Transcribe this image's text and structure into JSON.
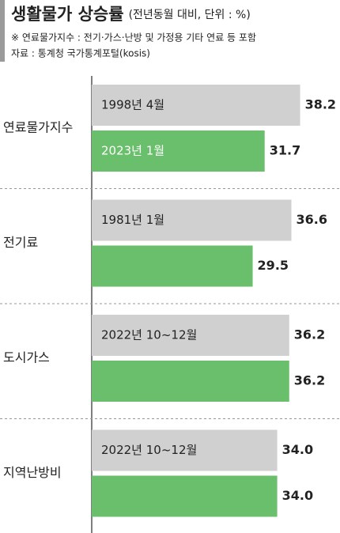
{
  "chart_data": {
    "type": "bar",
    "orientation": "horizontal",
    "title": "생활물가 상승률",
    "subtitle": "(전년동월 대비, 단위 : %)",
    "notes": [
      "※ 연료물가지수 : 전기·가스·난방 및 가정용 기타 연료 등 포함",
      "자료 : 통계청 국가통계포털(kosis)"
    ],
    "categories": [
      "연료물가지수",
      "전기료",
      "도시가스",
      "지역난방비"
    ],
    "series": [
      {
        "color": "#d0d0d0",
        "values": [
          38.2,
          36.6,
          36.2,
          34.0
        ],
        "value_labels": [
          "38.2",
          "36.6",
          "36.2",
          "34.0"
        ],
        "labels": [
          "1998년 4월",
          "1981년 1월",
          "2022년 10~12월",
          "2022년 10~12월"
        ]
      },
      {
        "color": "#6abf6c",
        "values": [
          31.7,
          29.5,
          36.2,
          34.0
        ],
        "value_labels": [
          "31.7",
          "29.5",
          "36.2",
          "34.0"
        ],
        "labels": [
          "2023년 1월",
          null,
          null,
          null
        ]
      }
    ],
    "xlim": [
      0,
      40
    ]
  }
}
